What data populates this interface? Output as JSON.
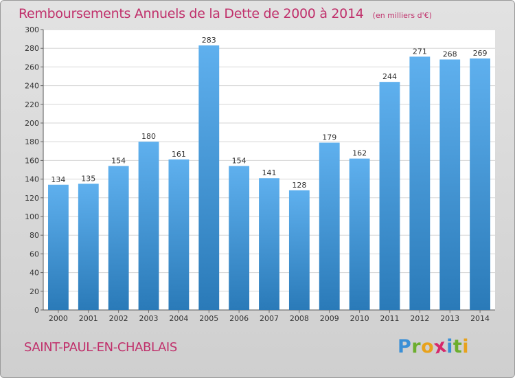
{
  "chart_data": {
    "type": "bar",
    "title": "Remboursements Annuels de la Dette de 2000 à 2014",
    "unit_note": "(en milliers d'€)",
    "categories": [
      "2000",
      "2001",
      "2002",
      "2003",
      "2004",
      "2005",
      "2006",
      "2007",
      "2008",
      "2009",
      "2010",
      "2011",
      "2012",
      "2013",
      "2014"
    ],
    "values": [
      134,
      135,
      154,
      180,
      161,
      283,
      154,
      141,
      128,
      179,
      162,
      244,
      271,
      268,
      269
    ],
    "ylim": [
      0,
      300
    ],
    "yticks": [
      0,
      20,
      40,
      60,
      80,
      100,
      120,
      140,
      160,
      180,
      200,
      220,
      240,
      260,
      280,
      300
    ],
    "grid": true,
    "data_labels": true,
    "xlabel": "",
    "ylabel": ""
  },
  "commune": "SAINT-PAUL-EN-CHABLAIS",
  "logo": {
    "letters": [
      "P",
      "r",
      "o",
      "x",
      "i",
      "t",
      "i"
    ],
    "colors": [
      "#3a8fd6",
      "#6cae2e",
      "#e8a21c",
      "#d6286b",
      "#3a8fd6",
      "#6cae2e",
      "#e8a21c"
    ]
  },
  "colors": {
    "title": "#c0306b",
    "bar_light": "#5fb0ee",
    "bar_dark": "#2a7ab8",
    "plot_bg": "#ffffff",
    "grid": "#d6d6d6"
  }
}
